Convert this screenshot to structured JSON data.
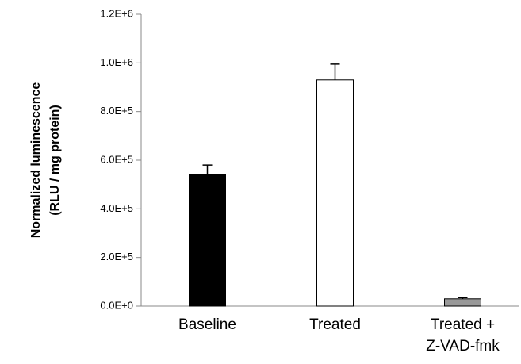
{
  "chart_data": {
    "type": "bar",
    "y_label": [
      "Normalized luminescence",
      "(RLU / mg protein)"
    ],
    "categories": [
      "Baseline",
      "Treated",
      "Treated +\nZ-VAD-fmk"
    ],
    "values": [
      540000,
      930000,
      30000
    ],
    "errors": [
      40000,
      65000,
      5000
    ],
    "colors": [
      "#000000",
      "#ffffff",
      "#999999"
    ],
    "ylim": [
      0,
      1200000
    ],
    "yticks": [
      {
        "value": 0,
        "label": "0.0E+0"
      },
      {
        "value": 200000,
        "label": "2.0E+5"
      },
      {
        "value": 400000,
        "label": "4.0E+5"
      },
      {
        "value": 600000,
        "label": "6.0E+5"
      },
      {
        "value": 800000,
        "label": "8.0E+5"
      },
      {
        "value": 1000000,
        "label": "1.0E+6"
      },
      {
        "value": 1200000,
        "label": "1.2E+6"
      }
    ],
    "grid": false
  }
}
